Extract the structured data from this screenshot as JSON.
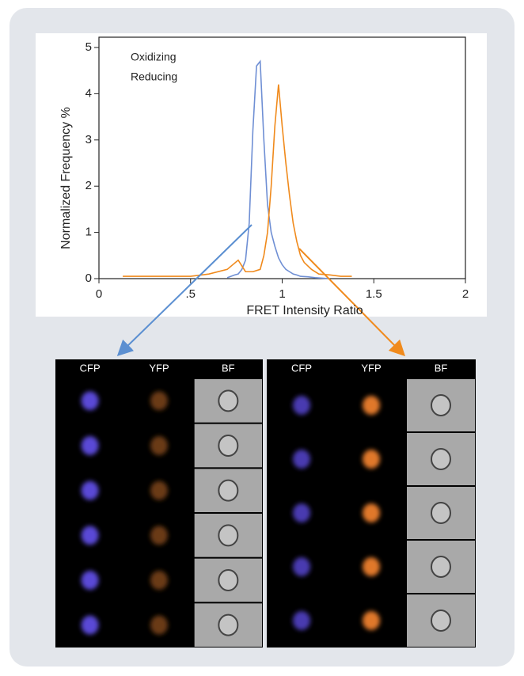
{
  "chart_data": {
    "type": "line",
    "xlabel": "FRET Intensity Ratio",
    "ylabel": "Normalized Frequency %",
    "xlim": [
      0,
      2
    ],
    "ylim": [
      0,
      5
    ],
    "xticks": [
      0,
      {
        "value": 0.5,
        "label": ".5"
      },
      1,
      1.5,
      2
    ],
    "yticks": [
      0,
      1,
      2,
      3,
      4,
      5
    ],
    "series": [
      {
        "name": "Oxidizing",
        "color": "#6f8fd4",
        "x": [
          0.7,
          0.72,
          0.74,
          0.76,
          0.78,
          0.8,
          0.82,
          0.84,
          0.86,
          0.88,
          0.9,
          0.92,
          0.94,
          0.96,
          0.98,
          1.0,
          1.02,
          1.04,
          1.06,
          1.08,
          1.1,
          1.14,
          1.18,
          1.22,
          1.26
        ],
        "values": [
          0.02,
          0.05,
          0.08,
          0.1,
          0.2,
          0.4,
          1.2,
          3.2,
          4.6,
          4.7,
          3.0,
          1.6,
          1.0,
          0.7,
          0.45,
          0.3,
          0.2,
          0.15,
          0.1,
          0.08,
          0.05,
          0.04,
          0.02,
          0.01,
          0
        ]
      },
      {
        "name": "Reducing",
        "color": "#f08a1c",
        "x": [
          0.13,
          0.3,
          0.5,
          0.6,
          0.7,
          0.76,
          0.8,
          0.84,
          0.88,
          0.9,
          0.92,
          0.94,
          0.96,
          0.98,
          1.0,
          1.02,
          1.04,
          1.06,
          1.08,
          1.1,
          1.12,
          1.16,
          1.2,
          1.26,
          1.32,
          1.38
        ],
        "values": [
          0.05,
          0.05,
          0.05,
          0.1,
          0.2,
          0.4,
          0.15,
          0.15,
          0.2,
          0.5,
          1.0,
          2.0,
          3.3,
          4.2,
          3.3,
          2.5,
          1.8,
          1.2,
          0.8,
          0.5,
          0.35,
          0.2,
          0.1,
          0.08,
          0.05,
          0.05
        ]
      }
    ]
  },
  "image_panels": [
    {
      "headers": [
        "CFP",
        "YFP",
        "BF"
      ]
    },
    {
      "headers": [
        "CFP",
        "YFP",
        "BF"
      ]
    }
  ]
}
